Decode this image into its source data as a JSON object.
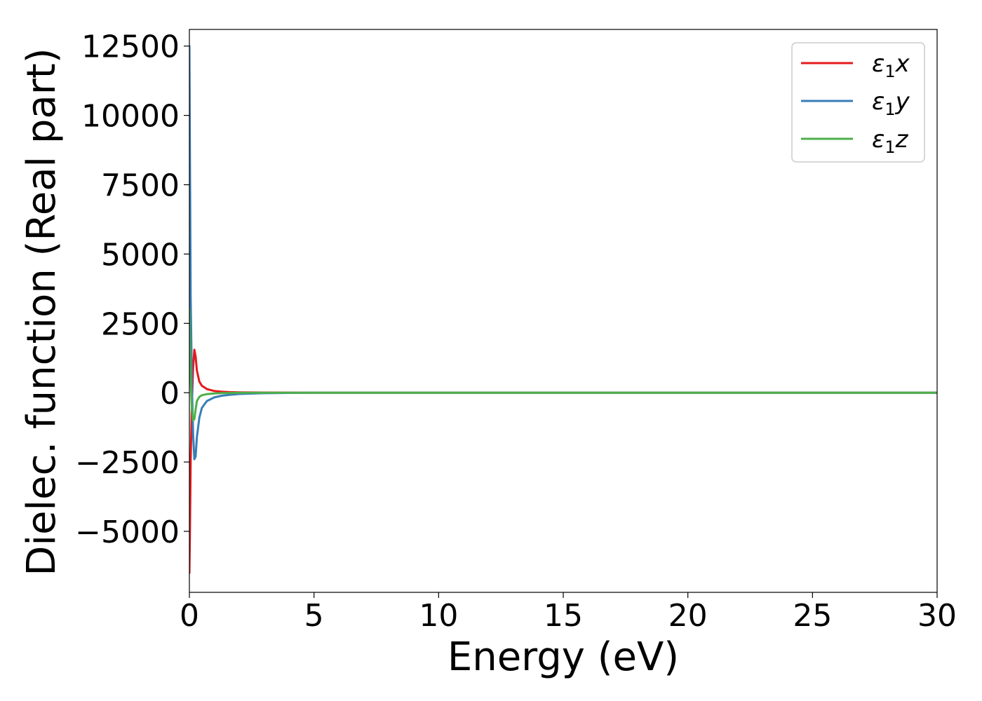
{
  "chart_data": {
    "type": "line",
    "title": "",
    "xlabel": "Energy (eV)",
    "ylabel": "Dielec. function (Real part)",
    "xlim": [
      0,
      30
    ],
    "ylim": [
      -7200,
      13100
    ],
    "xticks": [
      0,
      5,
      10,
      15,
      20,
      25,
      30
    ],
    "xtick_labels": [
      "0",
      "5",
      "10",
      "15",
      "20",
      "25",
      "30"
    ],
    "yticks": [
      -5000,
      -2500,
      0,
      2500,
      5000,
      7500,
      10000,
      12500
    ],
    "ytick_labels": [
      "−5000",
      "−2500",
      "0",
      "2500",
      "5000",
      "7500",
      "10000",
      "12500"
    ],
    "grid": false,
    "legend_position": "top-right",
    "series": [
      {
        "name": "ε₁x",
        "legend_base": "ε",
        "legend_sub": "1",
        "legend_var": "x",
        "color": "#e41a1c",
        "x": [
          0.0,
          0.02,
          0.05,
          0.1,
          0.15,
          0.2,
          0.25,
          0.3,
          0.4,
          0.5,
          0.7,
          1.0,
          1.3,
          1.6,
          2.0,
          3.0,
          4.0,
          5.0,
          10.0,
          15.0,
          20.0,
          25.0,
          30.0
        ],
        "y": [
          -6500,
          -5200,
          -2500,
          -400,
          900,
          1550,
          1300,
          800,
          400,
          250,
          130,
          60,
          35,
          20,
          12,
          5,
          2,
          0,
          0,
          0,
          0,
          0,
          0
        ]
      },
      {
        "name": "ε₁y",
        "legend_base": "ε",
        "legend_sub": "1",
        "legend_var": "y",
        "color": "#377eb8",
        "x": [
          0.0,
          0.02,
          0.05,
          0.1,
          0.15,
          0.2,
          0.25,
          0.3,
          0.4,
          0.5,
          0.7,
          1.0,
          1.3,
          1.6,
          2.0,
          3.0,
          4.0,
          5.0,
          10.0,
          15.0,
          20.0,
          25.0,
          30.0
        ],
        "y": [
          12500,
          9000,
          3500,
          300,
          -1500,
          -2400,
          -2300,
          -1600,
          -900,
          -550,
          -300,
          -170,
          -110,
          -75,
          -45,
          -18,
          -8,
          0,
          0,
          0,
          0,
          0,
          0
        ]
      },
      {
        "name": "ε₁z",
        "legend_base": "ε",
        "legend_sub": "1",
        "legend_var": "z",
        "color": "#4daf4a",
        "x": [
          0.0,
          0.02,
          0.05,
          0.1,
          0.15,
          0.2,
          0.25,
          0.3,
          0.4,
          0.5,
          0.7,
          1.0,
          1.3,
          1.6,
          2.0,
          3.0,
          4.0,
          5.0,
          10.0,
          15.0,
          20.0,
          25.0,
          30.0
        ],
        "y": [
          3000,
          2000,
          500,
          -600,
          -1000,
          -950,
          -600,
          -300,
          -150,
          -90,
          -50,
          -25,
          -15,
          -10,
          -6,
          -3,
          -1,
          0,
          0,
          0,
          0,
          0,
          0
        ]
      }
    ]
  }
}
